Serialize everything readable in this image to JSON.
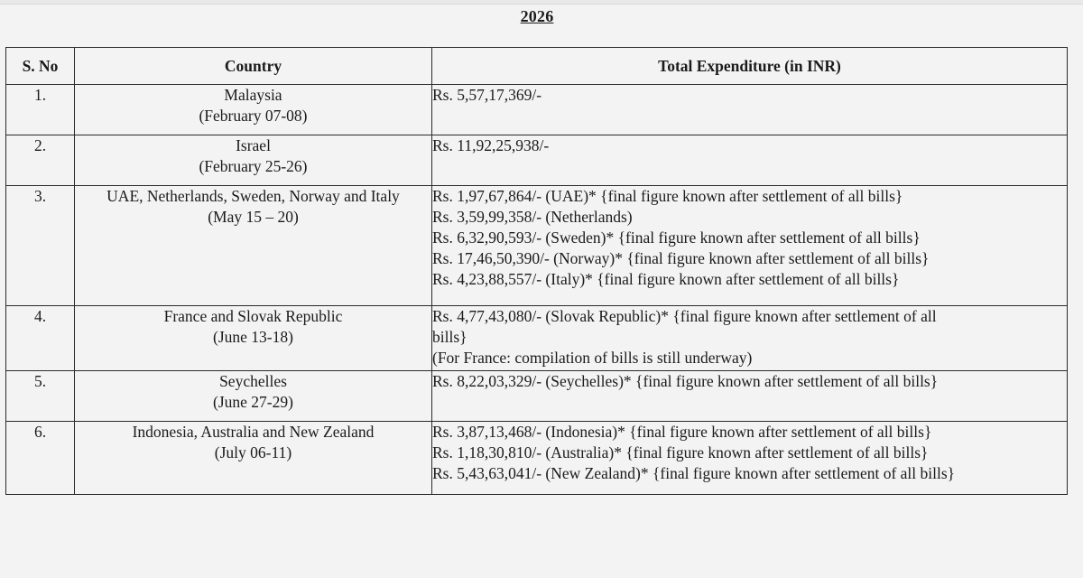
{
  "document": {
    "year_heading": "2026"
  },
  "table": {
    "headers": {
      "sno": "S. No",
      "country": "Country",
      "expenditure": "Total Expenditure (in INR)"
    },
    "rows": [
      {
        "sno": "1.",
        "country": "Malaysia",
        "dates": "(February 07-08)",
        "expenditure": [
          "Rs. 5,57,17,369/-"
        ]
      },
      {
        "sno": "2.",
        "country": "Israel",
        "dates": "(February 25-26)",
        "expenditure": [
          "Rs. 11,92,25,938/-"
        ]
      },
      {
        "sno": "3.",
        "country": "UAE, Netherlands, Sweden, Norway and Italy",
        "dates": "(May 15 – 20)",
        "expenditure": [
          "Rs. 1,97,67,864/- (UAE)*  {final figure known after settlement of all bills}",
          "Rs. 3,59,99,358/- (Netherlands)",
          "Rs. 6,32,90,593/- (Sweden)* {final figure known after settlement of all bills}",
          "Rs. 17,46,50,390/- (Norway)* {final figure known after settlement of all bills}",
          "Rs. 4,23,88,557/- (Italy)* {final figure known after settlement of all bills}"
        ]
      },
      {
        "sno": "4.",
        "country": "France and Slovak Republic",
        "dates": "(June 13-18)",
        "expenditure": [
          "Rs. 4,77,43,080/- (Slovak Republic)* {final figure known after settlement of all",
          "bills}",
          "(For France: compilation of bills is still underway)"
        ]
      },
      {
        "sno": "5.",
        "country": "Seychelles",
        "dates": "(June 27-29)",
        "expenditure": [
          "Rs. 8,22,03,329/- (Seychelles)* {final figure known after settlement of all bills}"
        ]
      },
      {
        "sno": "6.",
        "country": "Indonesia, Australia and New Zealand",
        "dates": "(July 06-11)",
        "expenditure": [
          "Rs. 3,87,13,468/- (Indonesia)* {final figure known after settlement of all bills}",
          "Rs. 1,18,30,810/- (Australia)* {final figure known after settlement of all bills}",
          "Rs. 5,43,63,041/- (New Zealand)* {final figure known after settlement of all bills}"
        ]
      }
    ]
  }
}
